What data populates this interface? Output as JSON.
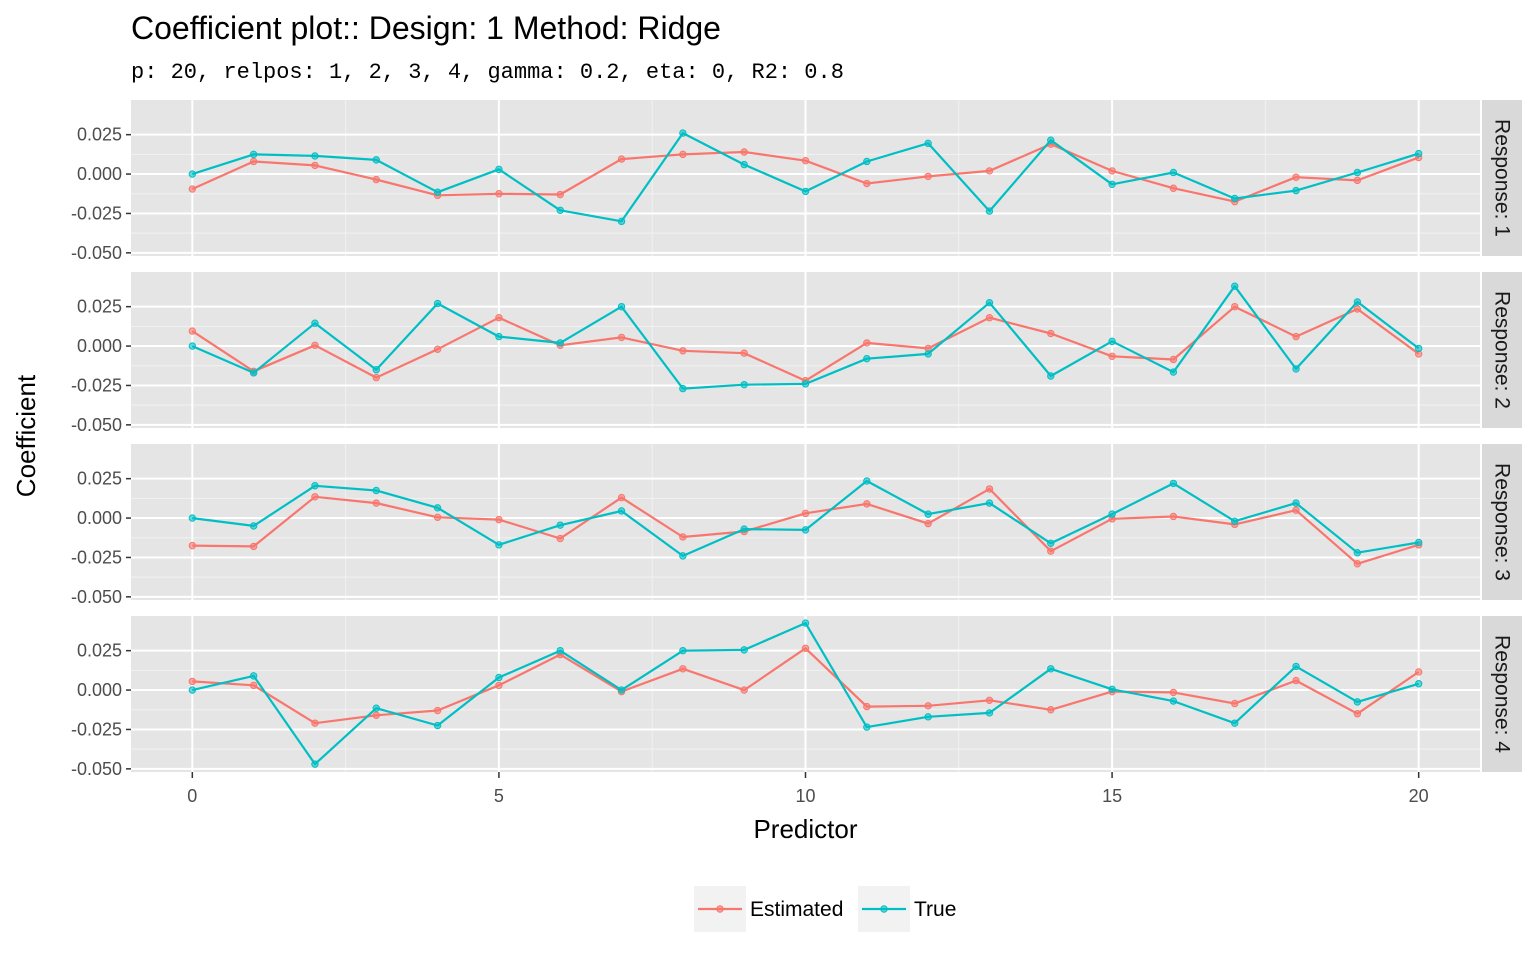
{
  "chart_data": {
    "type": "line",
    "title": "Coefficient plot::  Design: 1 Method: Ridge",
    "subtitle": "p: 20, relpos: 1, 2, 3, 4, gamma: 0.2, eta: 0, R2: 0.8",
    "xlabel": "Predictor",
    "ylabel": "Coefficient",
    "xlim": [
      -1,
      21
    ],
    "ylim": [
      -0.052,
      0.047
    ],
    "x_ticks": [
      0,
      5,
      10,
      15,
      20
    ],
    "x_tick_labels": [
      "0",
      "5",
      "10",
      "15",
      "20"
    ],
    "y_ticks": [
      -0.05,
      -0.025,
      0,
      0.025
    ],
    "y_tick_labels": [
      "-0.050",
      "-0.025",
      "0.000",
      "0.025"
    ],
    "grid": true,
    "legend_position": "bottom",
    "legend": [
      "Estimated",
      "True"
    ],
    "colors": {
      "Estimated": "#F8766D",
      "True": "#00BFC4",
      "panel_bg": "#e5e5e5",
      "strip_bg": "#d9d9d9"
    },
    "x": [
      0,
      1,
      2,
      3,
      4,
      5,
      6,
      7,
      8,
      9,
      10,
      11,
      12,
      13,
      14,
      15,
      16,
      17,
      18,
      19,
      20
    ],
    "panels": [
      {
        "strip": "Response: 1",
        "series": [
          {
            "name": "Estimated",
            "values": [
              -0.0095,
              0.008,
              0.0055,
              -0.0035,
              -0.0135,
              -0.0125,
              -0.013,
              0.0095,
              0.0125,
              0.014,
              0.0085,
              -0.006,
              -0.0015,
              0.002,
              0.019,
              0.002,
              -0.009,
              -0.0175,
              -0.002,
              -0.004,
              0.0105
            ]
          },
          {
            "name": "True",
            "values": [
              0,
              0.0125,
              0.0115,
              0.009,
              -0.0115,
              0.003,
              -0.023,
              -0.03,
              0.026,
              0.006,
              -0.011,
              0.008,
              0.0195,
              -0.0235,
              0.0215,
              -0.0065,
              0.001,
              -0.0155,
              -0.0105,
              0.001,
              0.013
            ]
          }
        ]
      },
      {
        "strip": "Response: 2",
        "series": [
          {
            "name": "Estimated",
            "values": [
              0.0095,
              -0.016,
              0.0005,
              -0.02,
              -0.002,
              0.018,
              0.0005,
              0.0055,
              -0.003,
              -0.0045,
              -0.022,
              0.002,
              -0.0015,
              0.018,
              0.008,
              -0.0065,
              -0.0085,
              0.025,
              0.006,
              0.0235,
              -0.005
            ]
          },
          {
            "name": "True",
            "values": [
              0,
              -0.017,
              0.0145,
              -0.015,
              0.027,
              0.006,
              0.002,
              0.025,
              -0.027,
              -0.0245,
              -0.024,
              -0.008,
              -0.005,
              0.0275,
              -0.019,
              0.003,
              -0.0165,
              0.038,
              -0.0145,
              0.028,
              -0.0015
            ]
          }
        ]
      },
      {
        "strip": "Response: 3",
        "series": [
          {
            "name": "Estimated",
            "values": [
              -0.0175,
              -0.018,
              0.0135,
              0.0095,
              0.0005,
              -0.001,
              -0.013,
              0.013,
              -0.012,
              -0.0085,
              0.003,
              0.009,
              -0.0035,
              0.0185,
              -0.021,
              -0.0005,
              0.001,
              -0.004,
              0.005,
              -0.029,
              -0.017
            ]
          },
          {
            "name": "True",
            "values": [
              0,
              -0.005,
              0.0205,
              0.0175,
              0.0065,
              -0.017,
              -0.0045,
              0.0045,
              -0.024,
              -0.007,
              -0.0075,
              0.0235,
              0.0025,
              0.0095,
              -0.016,
              0.0025,
              0.022,
              -0.002,
              0.0095,
              -0.022,
              -0.0155
            ]
          }
        ]
      },
      {
        "strip": "Response: 4",
        "series": [
          {
            "name": "Estimated",
            "values": [
              0.0055,
              0.003,
              -0.021,
              -0.016,
              -0.013,
              0.003,
              0.0225,
              -0.001,
              0.0135,
              0,
              0.0265,
              -0.0105,
              -0.01,
              -0.0065,
              -0.0125,
              -0.001,
              -0.0015,
              -0.0085,
              0.006,
              -0.015,
              0.0115
            ]
          },
          {
            "name": "True",
            "values": [
              0,
              0.009,
              -0.047,
              -0.0115,
              -0.0225,
              0.008,
              0.025,
              0,
              0.025,
              0.0255,
              0.0425,
              -0.0235,
              -0.017,
              -0.0145,
              0.0135,
              0.0005,
              -0.007,
              -0.021,
              0.015,
              -0.0075,
              0.004
            ]
          }
        ]
      }
    ]
  }
}
